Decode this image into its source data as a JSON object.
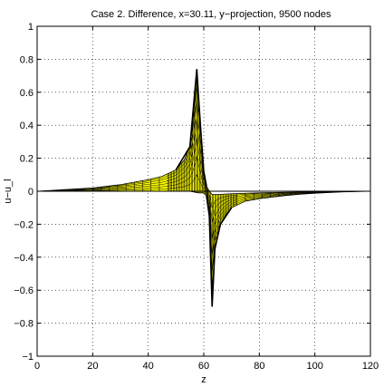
{
  "chart_data": {
    "type": "area",
    "title": "Case 2. Difference, x=30.11, y−projection, 9500 nodes",
    "xlabel": "z",
    "ylabel": "u−u_l",
    "xlim": [
      0,
      120
    ],
    "ylim": [
      -1,
      1
    ],
    "xticks": [
      0,
      20,
      40,
      60,
      80,
      100,
      120
    ],
    "yticks": [
      -1,
      -0.8,
      -0.6,
      -0.4,
      -0.2,
      0,
      0.2,
      0.4,
      0.6,
      0.8,
      1
    ],
    "xtick_labels": [
      "0",
      "20",
      "40",
      "60",
      "80",
      "100",
      "120"
    ],
    "ytick_labels": [
      "−1",
      "−0.8",
      "−0.6",
      "−0.4",
      "−0.2",
      "0",
      "0.2",
      "0.4",
      "0.6",
      "0.8",
      "1"
    ],
    "grid": true,
    "colors": {
      "fill": "#ffff00",
      "edge": "#000000"
    },
    "series": [
      {
        "role": "upper envelope",
        "points": [
          [
            0,
            0
          ],
          [
            5,
            0.005
          ],
          [
            10,
            0.01
          ],
          [
            20,
            0.02
          ],
          [
            30,
            0.04
          ],
          [
            40,
            0.07
          ],
          [
            45,
            0.09
          ],
          [
            50,
            0.13
          ],
          [
            53,
            0.19
          ],
          [
            55,
            0.27
          ],
          [
            56,
            0.4
          ],
          [
            57,
            0.6
          ],
          [
            57.5,
            0.74
          ],
          [
            58,
            0.6
          ],
          [
            59,
            0.35
          ],
          [
            60,
            0.12
          ],
          [
            61,
            0.03
          ],
          [
            62,
            0.0
          ],
          [
            63,
            -0.02
          ],
          [
            65,
            -0.02
          ],
          [
            70,
            -0.015
          ],
          [
            80,
            -0.01
          ],
          [
            90,
            -0.006
          ],
          [
            100,
            -0.003
          ],
          [
            110,
            -0.001
          ],
          [
            120,
            0
          ]
        ]
      },
      {
        "role": "lower envelope",
        "points": [
          [
            0,
            0
          ],
          [
            20,
            0
          ],
          [
            40,
            0
          ],
          [
            50,
            0.0
          ],
          [
            55,
            0.0
          ],
          [
            58,
            -0.01
          ],
          [
            60,
            -0.01
          ],
          [
            61,
            -0.03
          ],
          [
            62,
            -0.15
          ],
          [
            62.5,
            -0.4
          ],
          [
            63,
            -0.7
          ],
          [
            63.5,
            -0.55
          ],
          [
            64,
            -0.35
          ],
          [
            66,
            -0.2
          ],
          [
            68,
            -0.14
          ],
          [
            70,
            -0.1
          ],
          [
            75,
            -0.06
          ],
          [
            80,
            -0.045
          ],
          [
            85,
            -0.035
          ],
          [
            90,
            -0.025
          ],
          [
            95,
            -0.018
          ],
          [
            100,
            -0.012
          ],
          [
            110,
            -0.004
          ],
          [
            120,
            0
          ]
        ]
      }
    ]
  }
}
